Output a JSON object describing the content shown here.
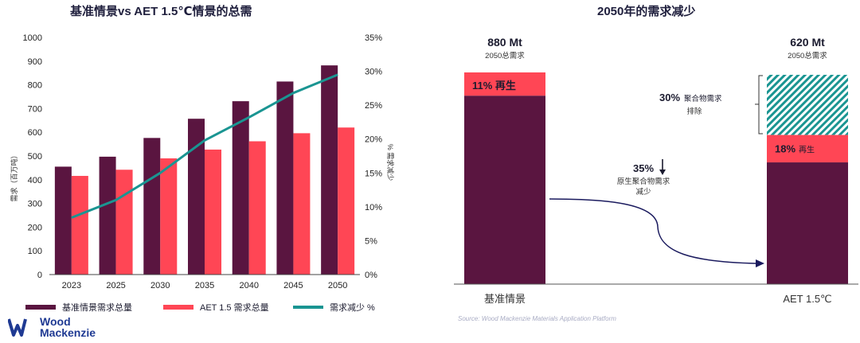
{
  "left_title": "基准情景vs AET 1.5℃情景的总需",
  "right_title": "2050年的需求减少",
  "logo": {
    "line1": "Wood",
    "line2": "Mackenzie"
  },
  "source": "Source: Wood Mackenzie Materials Application Platform",
  "colors": {
    "base": "#5a1540",
    "aet": "#ff4655",
    "line": "#1a9592",
    "hatch": "#1a9592",
    "arrow": "#1a1a5e"
  },
  "legend": {
    "base": "基准情景需求总量",
    "aet": "AET 1.5 需求总量",
    "line": "需求减少 %"
  },
  "chart_data": [
    {
      "type": "bar",
      "title": "基准情景vs AET 1.5℃情景的总需",
      "categories": [
        "2023",
        "2025",
        "2030",
        "2035",
        "2040",
        "2045",
        "2050"
      ],
      "ylabel": "需求（百万吨）",
      "y2label": "% 需求减少",
      "ylim": [
        0,
        1000
      ],
      "yticks": [
        "0",
        "100",
        "200",
        "300",
        "400",
        "500",
        "600",
        "700",
        "800",
        "900",
        "1000"
      ],
      "y2lim": [
        0,
        35
      ],
      "y2ticks": [
        "0%",
        "5%",
        "10%",
        "15%",
        "20%",
        "25%",
        "30%",
        "35%"
      ],
      "series": [
        {
          "name": "基准情景需求总量",
          "type": "bar",
          "values": [
            455,
            497,
            576,
            657,
            731,
            814,
            882
          ]
        },
        {
          "name": "AET 1.5 需求总量",
          "type": "bar",
          "values": [
            416,
            442,
            490,
            527,
            562,
            596,
            620
          ]
        },
        {
          "name": "需求减少 %",
          "type": "line",
          "axis": "y2",
          "values": [
            8.4,
            11.0,
            15.0,
            19.8,
            23.2,
            26.8,
            29.5
          ]
        }
      ]
    },
    {
      "type": "bar",
      "title": "2050年的需求减少",
      "categories": [
        "基准情景",
        "AET 1.5℃"
      ],
      "totals": [
        "880 Mt",
        "620 Mt"
      ],
      "total_sublabel": "2050总需求",
      "baseline": {
        "virgin": 783,
        "recycled_pct": "11%",
        "recycled_label": "再生"
      },
      "aet": {
        "virgin": 506,
        "recycled_pct": "18%",
        "recycled_label": "再生",
        "eliminated_pct": "30%",
        "eliminated_text": "聚合物需求\n排除"
      },
      "reduction": {
        "pct": "35%",
        "text": "原生聚合物需求\n减少"
      }
    }
  ]
}
